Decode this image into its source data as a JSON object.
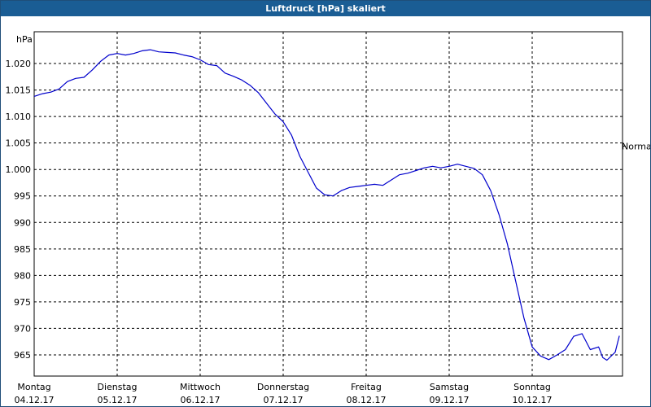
{
  "window": {
    "title": "Luftdruck [hPa] skaliert"
  },
  "chart_data": {
    "type": "line",
    "title": "Luftdruck [hPa] skaliert",
    "y_unit_label": "hPa",
    "ylim": [
      961,
      1026
    ],
    "xlim": [
      0,
      7.0
    ],
    "grid": true,
    "y_ticks": [
      {
        "value": 1020,
        "label": "1.020"
      },
      {
        "value": 1015,
        "label": "1.015"
      },
      {
        "value": 1010,
        "label": "1.010"
      },
      {
        "value": 1005,
        "label": "1.005"
      },
      {
        "value": 1000,
        "label": "1.000"
      },
      {
        "value": 995,
        "label": "995"
      },
      {
        "value": 990,
        "label": "990"
      },
      {
        "value": 985,
        "label": "985"
      },
      {
        "value": 980,
        "label": "980"
      },
      {
        "value": 975,
        "label": "975"
      },
      {
        "value": 970,
        "label": "970"
      },
      {
        "value": 965,
        "label": "965"
      }
    ],
    "x_ticks": [
      {
        "value": 0,
        "day": "Montag",
        "date": "04.12.17"
      },
      {
        "value": 1,
        "day": "Dienstag",
        "date": "05.12.17"
      },
      {
        "value": 2,
        "day": "Mittwoch",
        "date": "06.12.17"
      },
      {
        "value": 3,
        "day": "Donnerstag",
        "date": "07.12.17"
      },
      {
        "value": 4,
        "day": "Freitag",
        "date": "08.12.17"
      },
      {
        "value": 5,
        "day": "Samstag",
        "date": "09.12.17"
      },
      {
        "value": 6,
        "day": "Sonntag",
        "date": "10.12.17"
      }
    ],
    "reference_line": {
      "value": 1004.4,
      "label": "Normal"
    },
    "series": [
      {
        "color": "#0000cc",
        "x": [
          0,
          0.1,
          0.2,
          0.3,
          0.4,
          0.5,
          0.6,
          0.7,
          0.8,
          0.9,
          1.0,
          1.1,
          1.2,
          1.3,
          1.4,
          1.5,
          1.6,
          1.7,
          1.8,
          1.9,
          2.0,
          2.1,
          2.2,
          2.3,
          2.4,
          2.5,
          2.6,
          2.7,
          2.8,
          2.9,
          3.0,
          3.1,
          3.2,
          3.3,
          3.4,
          3.5,
          3.6,
          3.7,
          3.8,
          3.9,
          3.95,
          4.0,
          4.1,
          4.2,
          4.3,
          4.4,
          4.5,
          4.6,
          4.7,
          4.8,
          4.9,
          5.0,
          5.1,
          5.2,
          5.3,
          5.4,
          5.5,
          5.6,
          5.7,
          5.8,
          5.9,
          6.0,
          6.1,
          6.2,
          6.3,
          6.4,
          6.5,
          6.6,
          6.7,
          6.8,
          6.85,
          6.9,
          7.0,
          7.05
        ],
        "values": [
          1013.8,
          1014.3,
          1014.6,
          1015.2,
          1016.6,
          1017.2,
          1017.4,
          1018.8,
          1020.4,
          1021.6,
          1021.9,
          1021.6,
          1021.9,
          1022.4,
          1022.6,
          1022.2,
          1022.1,
          1022.0,
          1021.6,
          1021.3,
          1020.7,
          1019.8,
          1019.6,
          1018.2,
          1017.6,
          1016.9,
          1015.9,
          1014.5,
          1012.5,
          1010.5,
          1009.0,
          1006.5,
          1002.5,
          999.5,
          996.5,
          995.2,
          995.0,
          996.0,
          996.6,
          996.8,
          996.9,
          997.0,
          997.2,
          997.0,
          998.0,
          999.0,
          999.3,
          999.8,
          1000.3,
          1000.6,
          1000.3,
          1000.6,
          1001.0,
          1000.6,
          1000.2,
          999.0,
          996.0,
          991.5,
          986.0,
          979.0,
          972.0,
          966.5,
          964.8,
          964.1,
          965.0,
          966.0,
          968.5,
          969.0,
          966.0,
          966.5,
          964.5,
          964.0,
          965.5,
          968.6
        ]
      }
    ]
  }
}
